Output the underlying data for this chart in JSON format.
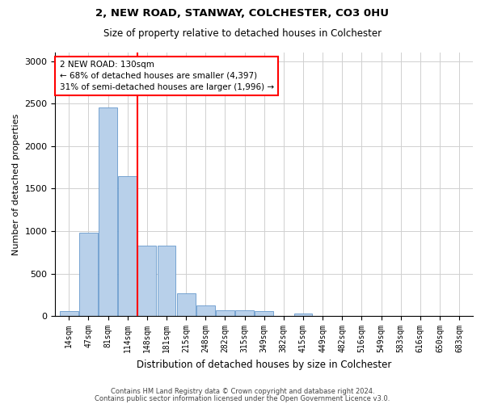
{
  "title": "2, NEW ROAD, STANWAY, COLCHESTER, CO3 0HU",
  "subtitle": "Size of property relative to detached houses in Colchester",
  "xlabel": "Distribution of detached houses by size in Colchester",
  "ylabel": "Number of detached properties",
  "categories": [
    "14sqm",
    "47sqm",
    "81sqm",
    "114sqm",
    "148sqm",
    "181sqm",
    "215sqm",
    "248sqm",
    "282sqm",
    "315sqm",
    "349sqm",
    "382sqm",
    "415sqm",
    "449sqm",
    "482sqm",
    "516sqm",
    "549sqm",
    "583sqm",
    "616sqm",
    "650sqm",
    "683sqm"
  ],
  "values": [
    55,
    980,
    2450,
    1650,
    830,
    830,
    270,
    130,
    65,
    65,
    55,
    0,
    30,
    0,
    0,
    0,
    0,
    0,
    0,
    0,
    0
  ],
  "bar_color": "#b8d0ea",
  "bar_edge_color": "#6699cc",
  "vline_x_index": 3.5,
  "vline_color": "red",
  "annotation_line1": "2 NEW ROAD: 130sqm",
  "annotation_line2": "← 68% of detached houses are smaller (4,397)",
  "annotation_line3": "31% of semi-detached houses are larger (1,996) →",
  "annotation_box_color": "white",
  "annotation_box_edge": "red",
  "ylim": [
    0,
    3100
  ],
  "yticks": [
    0,
    500,
    1000,
    1500,
    2000,
    2500,
    3000
  ],
  "footer1": "Contains HM Land Registry data © Crown copyright and database right 2024.",
  "footer2": "Contains public sector information licensed under the Open Government Licence v3.0.",
  "bg_color": "#ffffff",
  "grid_color": "#d0d0d0"
}
